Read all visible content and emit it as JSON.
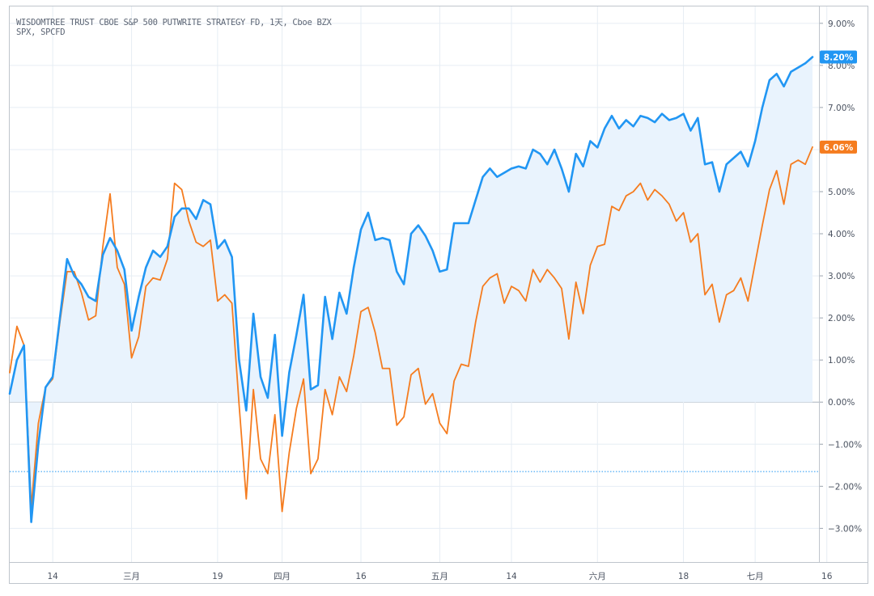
{
  "header": {
    "line1": "WISDOMTREE TRUST CBOE S&P 500 PUTWRITE STRATEGY FD, 1天, Cboe BZX",
    "line2": "SPX, SPCFD"
  },
  "colors": {
    "pcfd_line": "#2196f3",
    "pcfd_fill": "#e9f3fd",
    "spx_line": "#f57c1f",
    "grid": "#e6edf4",
    "zero_line": "#a9b2bd",
    "dotted_line": "#2196f3",
    "axis_text": "#4a5260"
  },
  "chart_data": {
    "type": "line",
    "ylim": [
      -3.8,
      9.4
    ],
    "yticks": [
      9,
      8,
      7,
      6,
      5,
      4,
      3,
      2,
      1,
      0,
      -1,
      -2,
      -3
    ],
    "ytick_labels": [
      "9.00%",
      "8.00%",
      "7.00%",
      "6.00%",
      "5.00%",
      "4.00%",
      "3.00%",
      "2.00%",
      "1.00%",
      "0.00%",
      "−1.00%",
      "−2.00%",
      "−3.00%"
    ],
    "xticks": [
      {
        "label": "14",
        "i": 6
      },
      {
        "label": "三月",
        "i": 17
      },
      {
        "label": "19",
        "i": 29
      },
      {
        "label": "四月",
        "i": 38
      },
      {
        "label": "16",
        "i": 49
      },
      {
        "label": "五月",
        "i": 60
      },
      {
        "label": "14",
        "i": 70
      },
      {
        "label": "六月",
        "i": 82
      },
      {
        "label": "18",
        "i": 94
      },
      {
        "label": "七月",
        "i": 104
      },
      {
        "label": "16",
        "i": 114
      }
    ],
    "reference_line": -1.65,
    "series": [
      {
        "name": "WISDOMTREE TRUST CBOE S&P 500 PUTWRITE STRATEGY FD",
        "last_label": "8.20%",
        "values": [
          0.2,
          1.0,
          1.35,
          -2.85,
          -1.0,
          0.35,
          0.6,
          2.0,
          3.4,
          3.0,
          2.8,
          2.5,
          2.4,
          3.5,
          3.9,
          3.6,
          3.15,
          1.7,
          2.5,
          3.2,
          3.6,
          3.45,
          3.7,
          4.4,
          4.6,
          4.6,
          4.35,
          4.8,
          4.7,
          3.65,
          3.85,
          3.45,
          1.0,
          -0.2,
          2.1,
          0.6,
          0.1,
          1.6,
          -0.8,
          0.7,
          1.6,
          2.55,
          0.3,
          0.4,
          2.5,
          1.5,
          2.6,
          2.1,
          3.2,
          4.1,
          4.5,
          3.85,
          3.9,
          3.85,
          3.1,
          2.8,
          4.0,
          4.2,
          3.95,
          3.6,
          3.1,
          3.15,
          4.25,
          4.25,
          4.25,
          4.8,
          5.35,
          5.55,
          5.35,
          5.45,
          5.55,
          5.6,
          5.55,
          6.0,
          5.9,
          5.65,
          6.0,
          5.55,
          5.0,
          5.9,
          5.6,
          6.2,
          6.05,
          6.5,
          6.8,
          6.5,
          6.7,
          6.55,
          6.8,
          6.75,
          6.65,
          6.85,
          6.7,
          6.75,
          6.85,
          6.45,
          6.75,
          5.65,
          5.7,
          5.0,
          5.65,
          5.8,
          5.95,
          5.6,
          6.2,
          7.0,
          7.65,
          7.8,
          7.5,
          7.85,
          7.95,
          8.05,
          8.2
        ]
      },
      {
        "name": "SPX",
        "last_label": "6.06%",
        "values": [
          0.7,
          1.8,
          1.35,
          -2.5,
          -0.5,
          0.35,
          0.55,
          1.9,
          3.1,
          3.1,
          2.6,
          1.95,
          2.05,
          3.7,
          4.95,
          3.2,
          2.8,
          1.05,
          1.55,
          2.75,
          2.95,
          2.9,
          3.4,
          5.2,
          5.05,
          4.3,
          3.8,
          3.7,
          3.85,
          2.4,
          2.55,
          2.35,
          -0.05,
          -2.3,
          0.3,
          -1.35,
          -1.7,
          -0.3,
          -2.6,
          -1.2,
          -0.15,
          0.55,
          -1.7,
          -1.35,
          0.3,
          -0.3,
          0.6,
          0.25,
          1.1,
          2.15,
          2.25,
          1.65,
          0.8,
          0.8,
          -0.55,
          -0.35,
          0.65,
          0.8,
          -0.05,
          0.2,
          -0.5,
          -0.75,
          0.5,
          0.9,
          0.85,
          1.9,
          2.75,
          2.95,
          3.05,
          2.35,
          2.75,
          2.65,
          2.4,
          3.15,
          2.85,
          3.15,
          2.95,
          2.7,
          1.5,
          2.85,
          2.1,
          3.25,
          3.7,
          3.75,
          4.65,
          4.55,
          4.9,
          5.0,
          5.2,
          4.8,
          5.05,
          4.9,
          4.7,
          4.3,
          4.5,
          3.8,
          4.0,
          2.55,
          2.8,
          1.9,
          2.55,
          2.65,
          2.95,
          2.4,
          3.3,
          4.2,
          5.05,
          5.5,
          4.7,
          5.65,
          5.75,
          5.65,
          6.06
        ]
      }
    ]
  },
  "caption": {
    "text": ""
  }
}
